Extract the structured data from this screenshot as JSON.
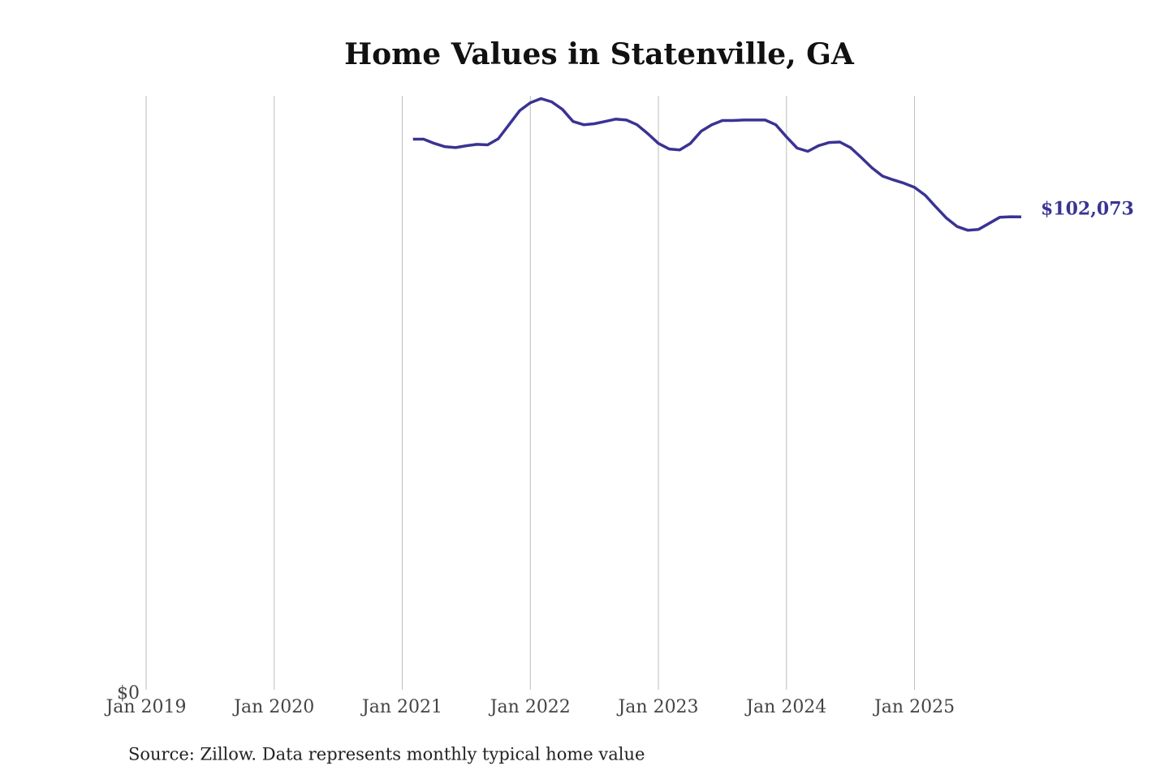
{
  "chart_data": {
    "type": "line",
    "title": "Home Values in Statenville, GA",
    "source": "Source: Zillow. Data represents monthly typical home value",
    "x": [
      "2021-02",
      "2021-03",
      "2021-04",
      "2021-05",
      "2021-06",
      "2021-07",
      "2021-08",
      "2021-09",
      "2021-10",
      "2021-11",
      "2021-12",
      "2022-01",
      "2022-02",
      "2022-03",
      "2022-04",
      "2022-05",
      "2022-06",
      "2022-07",
      "2022-08",
      "2022-09",
      "2022-10",
      "2022-11",
      "2022-12",
      "2023-01",
      "2023-02",
      "2023-03",
      "2023-04",
      "2023-05",
      "2023-06",
      "2023-07",
      "2023-08",
      "2023-09",
      "2023-10",
      "2023-11",
      "2023-12",
      "2024-01",
      "2024-02",
      "2024-03",
      "2024-04",
      "2024-05",
      "2024-06",
      "2024-07",
      "2024-08",
      "2024-09",
      "2024-10",
      "2024-11",
      "2024-12",
      "2025-01",
      "2025-02",
      "2025-03",
      "2025-04",
      "2025-05",
      "2025-06",
      "2025-07",
      "2025-08",
      "2025-09",
      "2025-10",
      "2025-11"
    ],
    "series": [
      {
        "color": "#3a3393",
        "values": [
          118700,
          118700,
          117800,
          117100,
          116900,
          117300,
          117600,
          117500,
          118800,
          121800,
          124800,
          126500,
          127400,
          126700,
          125100,
          122500,
          121800,
          122000,
          122500,
          123000,
          122800,
          121800,
          119900,
          117800,
          116600,
          116400,
          117800,
          120400,
          121800,
          122700,
          122700,
          122800,
          122800,
          122800,
          121800,
          119200,
          116800,
          116100,
          117300,
          118000,
          118100,
          116900,
          114800,
          112600,
          110800,
          110000,
          109300,
          108400,
          106700,
          104200,
          101800,
          100000,
          99200,
          99400,
          100700,
          102000,
          102100,
          102073
        ]
      }
    ],
    "annotations": [
      {
        "label": "$102,073",
        "x": "2025-11",
        "y": 102073
      }
    ],
    "xlim": [
      "2019-01",
      "2025-11"
    ],
    "xticks": [
      {
        "value": "2019-01",
        "label": "Jan 2019"
      },
      {
        "value": "2020-01",
        "label": "Jan 2020"
      },
      {
        "value": "2021-01",
        "label": "Jan 2021"
      },
      {
        "value": "2022-01",
        "label": "Jan 2022"
      },
      {
        "value": "2023-01",
        "label": "Jan 2023"
      },
      {
        "value": "2024-01",
        "label": "Jan 2024"
      },
      {
        "value": "2025-01",
        "label": "Jan 2025"
      }
    ],
    "ylim": [
      0,
      128000
    ],
    "yticks": [
      {
        "value": 0,
        "label": "$0"
      }
    ],
    "grid": "x"
  }
}
